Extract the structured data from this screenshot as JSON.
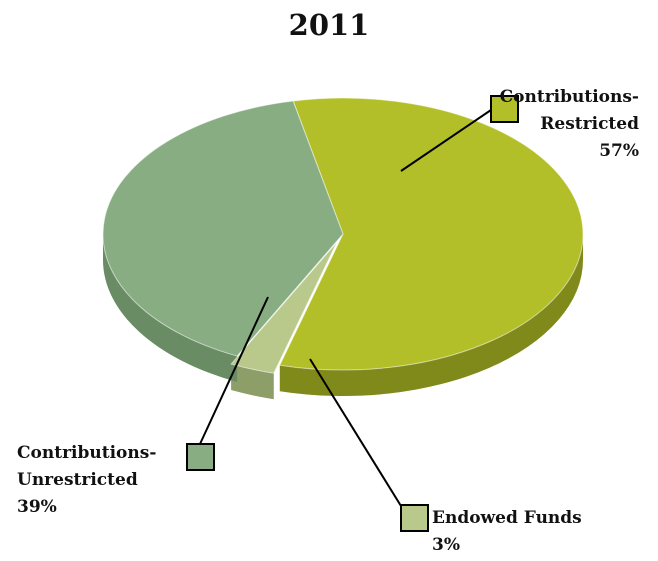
{
  "chart_data": {
    "type": "pie",
    "title": "2011",
    "slices": [
      {
        "name_line1": "Contributions-",
        "name_line2": "Restricted",
        "value": 57,
        "pct_label": "57%",
        "color": "#b3bf28",
        "side_color": "#7f8a1a"
      },
      {
        "name_line1": "Endowed Funds",
        "name_line2": "",
        "value": 3,
        "pct_label": "3%",
        "color": "#b9c98c",
        "side_color": "#8e9e68"
      },
      {
        "name_line1": "Contributions-",
        "name_line2": "Unrestricted",
        "value": 39,
        "pct_label": "39%",
        "color": "#88ad82",
        "side_color": "#698c64"
      }
    ]
  }
}
